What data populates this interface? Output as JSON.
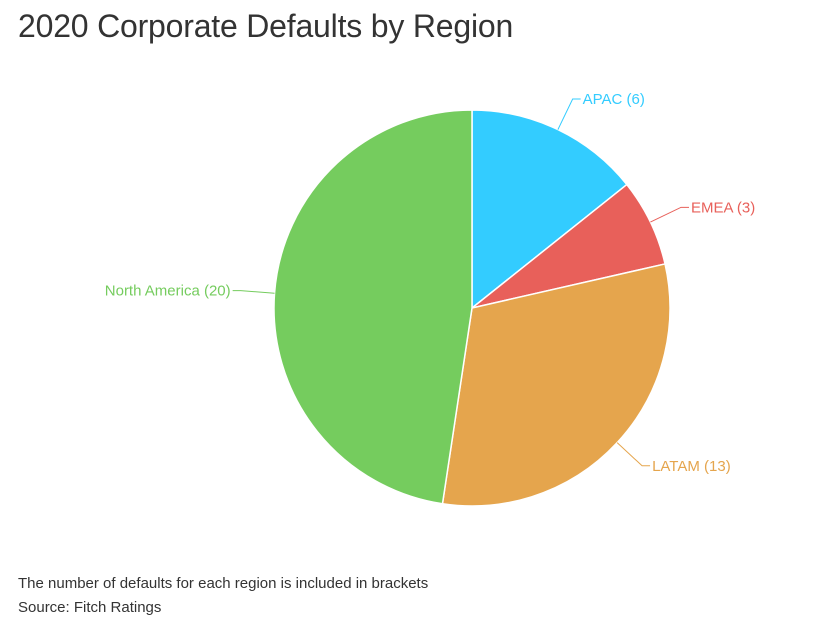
{
  "chart_data": {
    "type": "pie",
    "title": "2020 Corporate Defaults by Region",
    "slices": [
      {
        "label": "APAC (6)",
        "value": 6,
        "color": "#33ccff"
      },
      {
        "label": "EMEA (3)",
        "value": 3,
        "color": "#e8605a"
      },
      {
        "label": "LATAM (13)",
        "value": 13,
        "color": "#e5a54d"
      },
      {
        "label": "North America (20)",
        "value": 20,
        "color": "#75cc5e"
      }
    ],
    "start_angle_deg": 0,
    "direction": "clockwise",
    "legend": "none"
  },
  "footnotes": {
    "note": "The number of defaults for each region is included in brackets",
    "source": "Source: Fitch Ratings"
  }
}
